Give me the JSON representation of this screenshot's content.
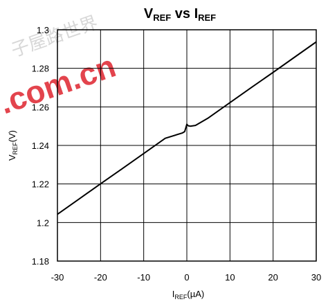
{
  "chart_data": {
    "type": "line",
    "title": {
      "left_main": "V",
      "left_sub": "REF",
      "middle": " vs ",
      "right_main": "I",
      "right_sub": "REF"
    },
    "xlabel": {
      "main": "I",
      "sub": "REF",
      "unit": "(µA)"
    },
    "ylabel": {
      "main": "V",
      "sub": "REF",
      "unit": "(V)"
    },
    "xlim": [
      -30,
      30
    ],
    "ylim": [
      1.18,
      1.3
    ],
    "x_ticks": [
      -30,
      -20,
      -10,
      0,
      10,
      20,
      30
    ],
    "x_tick_labels": [
      "-30",
      "-20",
      "-10",
      "0",
      "10",
      "20",
      "30"
    ],
    "y_ticks": [
      1.18,
      1.2,
      1.22,
      1.24,
      1.26,
      1.28,
      1.3
    ],
    "y_tick_labels": [
      "1.18",
      "1.2",
      "1.22",
      "1.24",
      "1.26",
      "1.28",
      "1.3"
    ],
    "grid": true,
    "series": [
      {
        "x": [
          -30,
          -25,
          -20,
          -15,
          -10,
          -5,
          -1,
          -0.5,
          -0.2,
          0,
          0.3,
          0.8,
          2,
          5,
          10,
          15,
          20,
          25,
          30
        ],
        "y": [
          1.2043,
          1.2122,
          1.2201,
          1.2279,
          1.2358,
          1.2437,
          1.2465,
          1.2472,
          1.2495,
          1.251,
          1.2502,
          1.25,
          1.2504,
          1.2543,
          1.2622,
          1.2701,
          1.2779,
          1.2858,
          1.2937
        ]
      }
    ]
  },
  "watermark": {
    "domain": ".com.cn",
    "chars": "子屋路世界"
  }
}
